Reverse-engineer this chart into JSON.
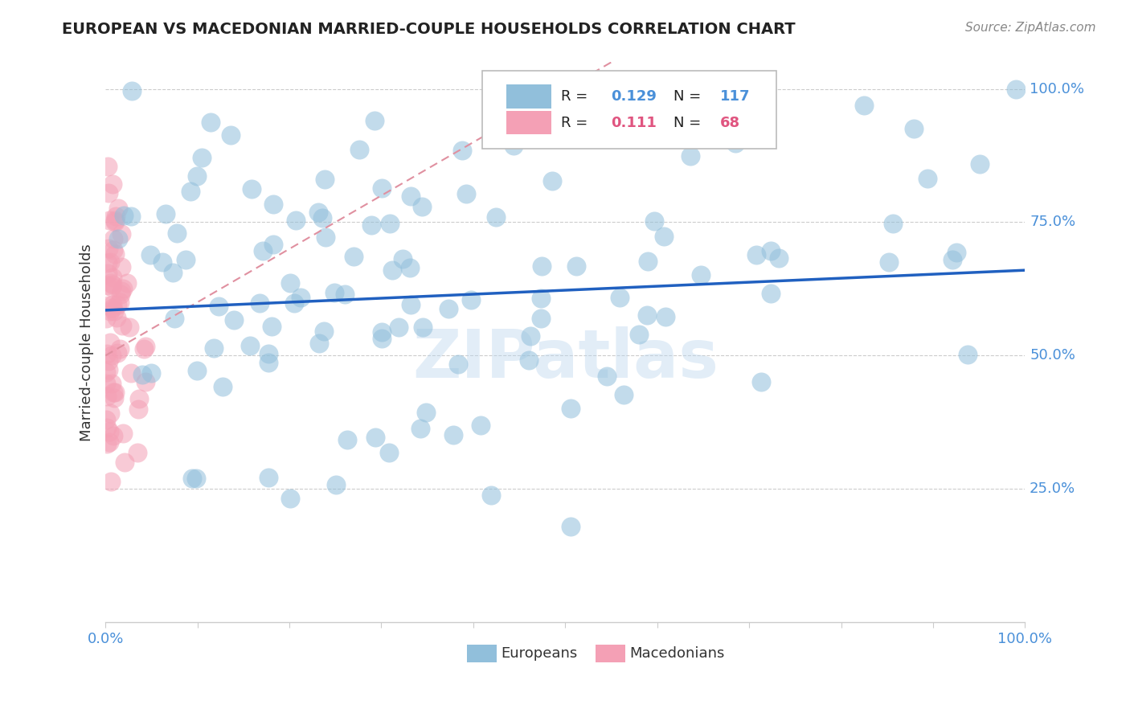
{
  "title": "EUROPEAN VS MACEDONIAN MARRIED-COUPLE HOUSEHOLDS CORRELATION CHART",
  "source": "Source: ZipAtlas.com",
  "ylabel": "Married-couple Households",
  "xlim": [
    0.0,
    1.0
  ],
  "ylim": [
    0.0,
    1.05
  ],
  "ytick_labels": [
    "25.0%",
    "50.0%",
    "75.0%",
    "100.0%"
  ],
  "ytick_positions": [
    0.25,
    0.5,
    0.75,
    1.0
  ],
  "europeans_color": "#91bfdb",
  "macedonians_color": "#f4a0b5",
  "europeans_R": 0.129,
  "europeans_N": 117,
  "macedonians_R": 0.111,
  "macedonians_N": 68,
  "legend_R_color_blue": "#4a90d9",
  "legend_R_color_pink": "#e05580",
  "trend_blue_color": "#2060c0",
  "trend_pink_color": "#e090a0",
  "watermark": "ZIPatlas",
  "background_color": "#ffffff",
  "grid_color": "#cccccc"
}
